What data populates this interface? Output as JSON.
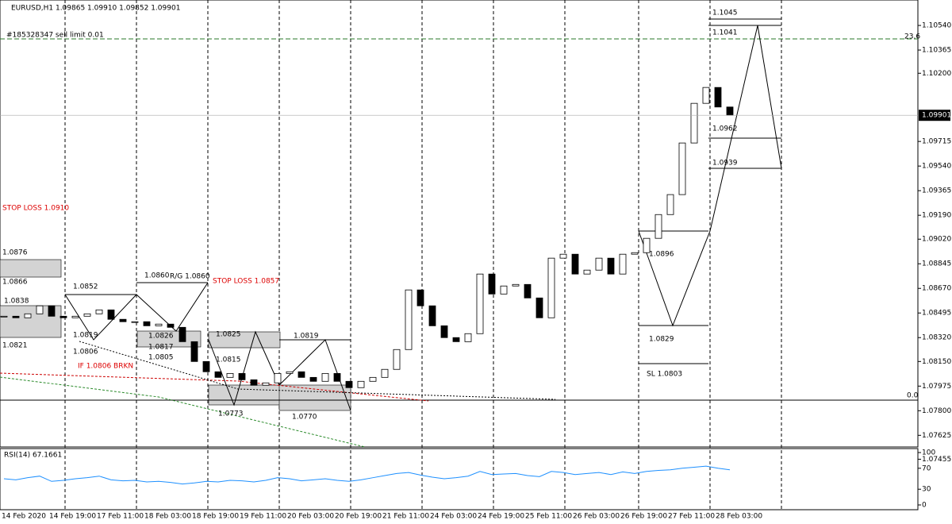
{
  "chart_data": {
    "type": "candlestick",
    "title": "EURUSD,H1  1.09865 1.09910 1.09852 1.09901",
    "last_price": {
      "value": 1.09901,
      "label": "1.09901"
    },
    "close": [
      1.08472,
      1.08461,
      1.08489,
      1.08546,
      1.08472,
      1.08461,
      1.08472,
      1.08489,
      1.08517,
      1.0845,
      1.08433,
      1.08433,
      1.08404,
      1.08416,
      1.08393,
      1.08291,
      1.0815,
      1.08077,
      1.08037,
      1.08065,
      1.0802,
      1.07981,
      1.07998,
      1.08065,
      1.08077,
      1.08037,
      1.08009,
      1.08065,
      1.08009,
      1.07964,
      1.08009,
      1.08037,
      1.08094,
      1.08235,
      1.08659,
      1.08546,
      1.08404,
      1.0832,
      1.08291,
      1.08348,
      1.08772,
      1.0863,
      1.08687,
      1.08698,
      1.08602,
      1.08461,
      1.08885,
      1.08913,
      1.08772,
      1.088,
      1.08885,
      1.08772,
      1.08913,
      1.08924,
      1.09026,
      1.09195,
      1.09337,
      1.09704,
      1.09986,
      1.10099,
      1.0996,
      1.09901
    ],
    "ylim": [
      1.07542,
      1.10721
    ],
    "yticks": [
      {
        "value": 1.1054,
        "label": "1.10540"
      },
      1.10365,
      {
        "value": 1.102,
        "label": "1.10200"
      },
      1.09715,
      {
        "value": 1.0954,
        "label": "1.09540"
      },
      1.09365,
      {
        "value": 1.0919,
        "label": "1.09190"
      },
      {
        "value": 1.0902,
        "label": "1.09020"
      },
      1.08845,
      {
        "value": 1.0867,
        "label": "1.08670"
      },
      1.08495,
      {
        "value": 1.0832,
        "label": "1.08320"
      },
      {
        "value": 1.0815,
        "label": "1.08150"
      },
      1.07975,
      {
        "value": 1.078,
        "label": "1.07800"
      },
      1.07625,
      1.07455
    ],
    "x_labels": [
      "14 Feb 2020",
      "14 Feb 19:00",
      "17 Feb 11:00",
      "18 Feb 03:00",
      "18 Feb 19:00",
      "19 Feb 11:00",
      "20 Feb 03:00",
      "20 Feb 19:00",
      "21 Feb 11:00",
      "24 Feb 03:00",
      "24 Feb 19:00",
      "25 Feb 11:00",
      "26 Feb 03:00",
      "26 Feb 19:00",
      "27 Feb 11:00",
      "28 Feb 03:00"
    ],
    "rsi": {
      "label": "RSI(14) 67.1661",
      "color": "#1e90ff",
      "ylim": [
        0,
        100
      ],
      "yticks": [
        100,
        70,
        30,
        0
      ],
      "values": [
        50,
        48,
        52,
        55,
        45,
        47,
        50,
        52,
        55,
        48,
        46,
        47,
        44,
        45,
        43,
        40,
        42,
        45,
        44,
        47,
        46,
        44,
        47,
        52,
        50,
        46,
        48,
        50,
        47,
        45,
        48,
        52,
        56,
        60,
        62,
        57,
        53,
        50,
        52,
        55,
        64,
        58,
        59,
        60,
        56,
        54,
        64,
        62,
        58,
        60,
        62,
        58,
        63,
        60,
        64,
        66,
        67,
        70,
        72,
        74,
        70,
        67
      ]
    },
    "annotations": [
      "#185328347 sell limit 0.01",
      "STOP LOSS 1.0910",
      "1.0876",
      "1.0866",
      "1.0838",
      "1.0821",
      "1.0852",
      "1.0819",
      "1.0806",
      "1.0860",
      "R/G 1.0860",
      "STOP LOSS 1.0857",
      "1.0826",
      "1.0817",
      "1.0805",
      "1.0815",
      "1.0825",
      "1.0819",
      "1.0773",
      "1.0770",
      "IF 1.0806 BRKN",
      "1.0896",
      "1.0829",
      "SL 1.0803",
      "1.0962",
      "1.0939",
      "1.1045",
      "1.1041",
      "23.6",
      "0.0"
    ]
  }
}
